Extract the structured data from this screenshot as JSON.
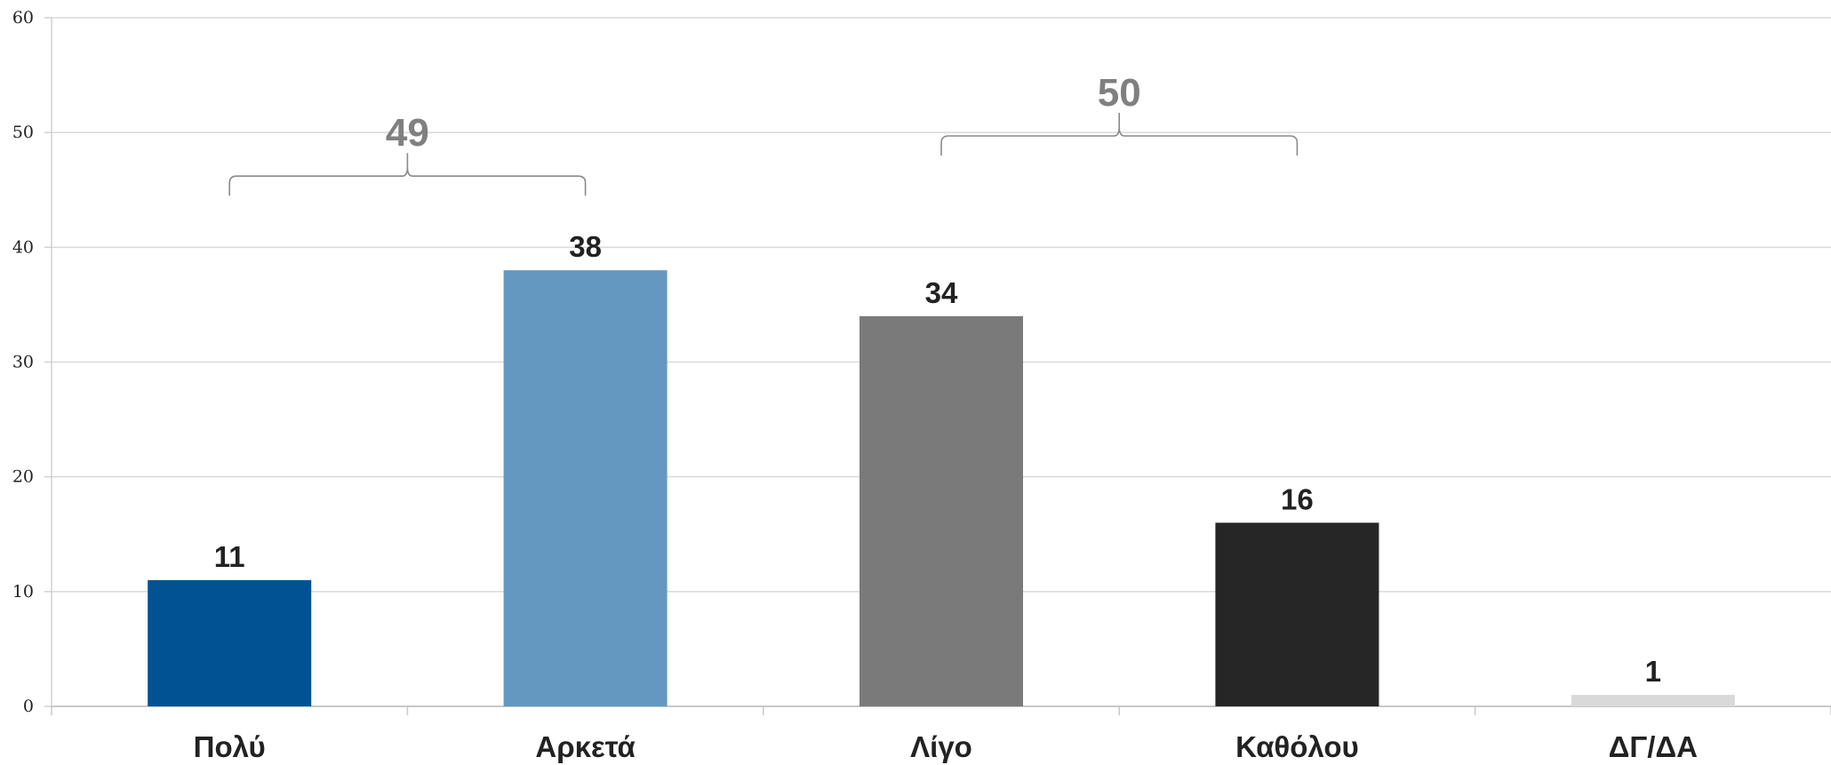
{
  "chart_data": {
    "type": "bar",
    "categories": [
      "Πολύ",
      "Αρκετά",
      "Λίγο",
      "Καθόλου",
      "ΔΓ/ΔΑ"
    ],
    "values": [
      11,
      38,
      34,
      16,
      1
    ],
    "colors": [
      "#005293",
      "#6598c0",
      "#7a7a7a",
      "#262626",
      "#d9d9d9"
    ],
    "data_labels": [
      "11",
      "38",
      "34",
      "16",
      "1"
    ],
    "yticks": [
      "0",
      "10",
      "20",
      "30",
      "40",
      "50",
      "60"
    ],
    "ylim": [
      0,
      60
    ],
    "grid": true,
    "group_annotations": [
      {
        "label": "49",
        "from_category": 0,
        "to_category": 1,
        "level": 44.5
      },
      {
        "label": "50",
        "from_category": 2,
        "to_category": 3,
        "level": 48
      }
    ],
    "title": "",
    "xlabel": "",
    "ylabel": ""
  }
}
